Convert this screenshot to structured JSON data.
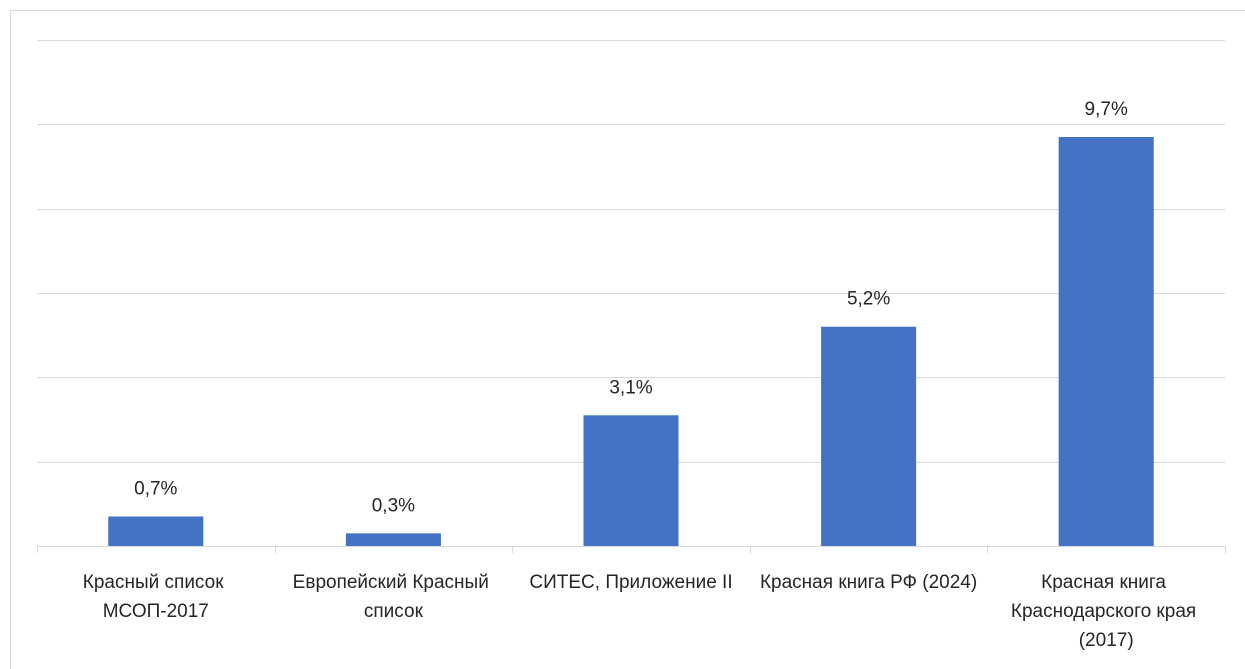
{
  "chart_data": {
    "type": "bar",
    "categories": [
      "Красный список МСОП-2017",
      "Европейский Красный список",
      "СИТЕС, Приложение II",
      "Красная книга РФ (2024)",
      "Красная книга Краснодарского края (2017)"
    ],
    "values": [
      0.7,
      0.3,
      3.1,
      5.2,
      9.7
    ],
    "value_labels": [
      "0,7%",
      "0,3%",
      "3,1%",
      "5,2%",
      "9,7%"
    ],
    "color": "#4472c4",
    "ylim": [
      0,
      12
    ],
    "yticks": [
      0,
      2,
      4,
      6,
      8,
      10,
      12
    ],
    "grid": true
  }
}
